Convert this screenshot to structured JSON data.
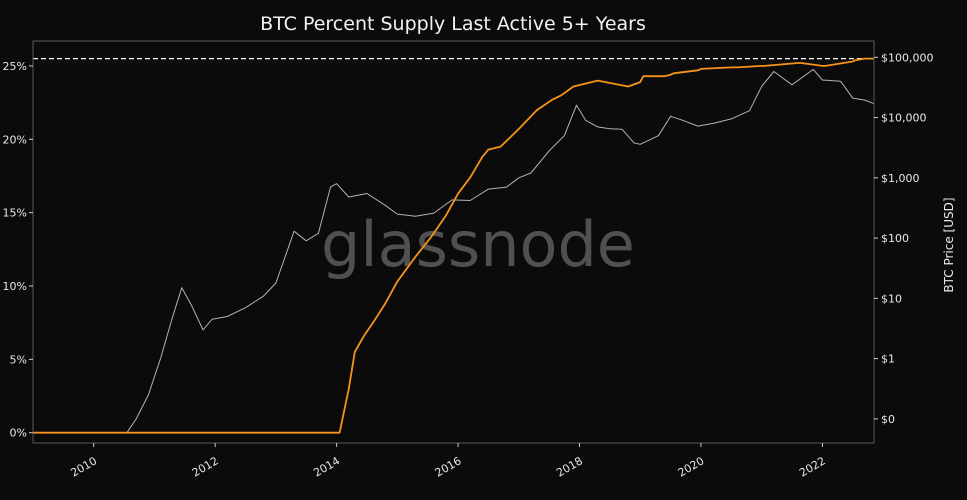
{
  "chart_data": {
    "type": "line",
    "title": "BTC Percent Supply Last Active 5+ Years",
    "watermark": "glassnode",
    "xlabel": "",
    "ylabel": "",
    "y2label": "BTC Price [USD]",
    "xlim": [
      2009.0,
      2022.85
    ],
    "ylim": [
      -0.7,
      26.7
    ],
    "y2_scale": "log",
    "y2lim": [
      0.0398,
      186210
    ],
    "x_ticks": [
      2010,
      2012,
      2014,
      2016,
      2018,
      2020,
      2022
    ],
    "x_tick_labels": [
      "2010",
      "2012",
      "2014",
      "2016",
      "2018",
      "2020",
      "2022"
    ],
    "y_ticks": [
      0,
      5,
      10,
      15,
      20,
      25
    ],
    "y_tick_labels": [
      "0%",
      "5%",
      "10%",
      "15%",
      "20%",
      "25%"
    ],
    "y2_ticks": [
      0.1,
      1,
      10,
      100,
      1000,
      10000,
      100000
    ],
    "y2_tick_labels": [
      "$0",
      "$1",
      "$10",
      "$100",
      "$1,000",
      "$10,000",
      "$100,000"
    ],
    "reference_line": {
      "y": 25.5,
      "style": "dashed",
      "color": "#ffffff"
    },
    "grid": false,
    "legend": "none",
    "series": [
      {
        "axis": "left",
        "color": "#f7931a",
        "x": [
          2009.0,
          2014.05,
          2014.2,
          2014.3,
          2014.45,
          2014.6,
          2014.8,
          2015.0,
          2015.3,
          2015.55,
          2015.8,
          2016.0,
          2016.2,
          2016.4,
          2016.5,
          2016.7,
          2017.0,
          2017.3,
          2017.55,
          2017.7,
          2017.9,
          2018.3,
          2018.8,
          2019.0,
          2019.05,
          2019.1,
          2019.4,
          2019.5,
          2019.55,
          2019.95,
          2020.0,
          2020.5,
          2020.6,
          2021.0,
          2021.05,
          2021.6,
          2021.65,
          2022.0,
          2022.05,
          2022.5,
          2022.55,
          2022.7,
          2022.85
        ],
        "y": [
          0,
          0,
          3.0,
          5.5,
          6.6,
          7.5,
          8.8,
          10.3,
          12.0,
          13.3,
          14.8,
          16.3,
          17.4,
          18.8,
          19.3,
          19.5,
          20.7,
          22.0,
          22.7,
          23.0,
          23.6,
          24.0,
          23.6,
          23.9,
          24.3,
          24.3,
          24.3,
          24.4,
          24.5,
          24.7,
          24.8,
          24.9,
          24.9,
          25.0,
          25.0,
          25.2,
          25.2,
          25.0,
          25.0,
          25.3,
          25.4,
          25.5,
          25.5
        ]
      },
      {
        "axis": "right",
        "color": "#b3b3b3",
        "x": [
          2010.55,
          2010.7,
          2010.9,
          2011.1,
          2011.3,
          2011.45,
          2011.6,
          2011.8,
          2011.95,
          2012.2,
          2012.5,
          2012.8,
          2013.0,
          2013.3,
          2013.5,
          2013.7,
          2013.9,
          2014.0,
          2014.2,
          2014.5,
          2014.8,
          2015.0,
          2015.3,
          2015.6,
          2015.9,
          2016.2,
          2016.5,
          2016.8,
          2017.0,
          2017.2,
          2017.5,
          2017.75,
          2017.95,
          2018.1,
          2018.3,
          2018.5,
          2018.7,
          2018.9,
          2019.0,
          2019.3,
          2019.5,
          2019.7,
          2019.95,
          2020.2,
          2020.5,
          2020.8,
          2021.0,
          2021.2,
          2021.5,
          2021.85,
          2022.0,
          2022.3,
          2022.5,
          2022.7,
          2022.85
        ],
        "y": [
          0.06,
          0.1,
          0.25,
          1.0,
          5,
          15,
          8,
          3,
          4.5,
          5,
          7,
          11,
          18,
          130,
          90,
          120,
          700,
          800,
          480,
          550,
          350,
          250,
          230,
          260,
          430,
          420,
          650,
          700,
          1000,
          1200,
          2800,
          5000,
          16000,
          9000,
          7000,
          6500,
          6400,
          3800,
          3600,
          5000,
          10500,
          9000,
          7200,
          8000,
          9500,
          13000,
          33000,
          58000,
          35000,
          63000,
          42000,
          40000,
          21000,
          19500,
          17000
        ]
      }
    ]
  }
}
